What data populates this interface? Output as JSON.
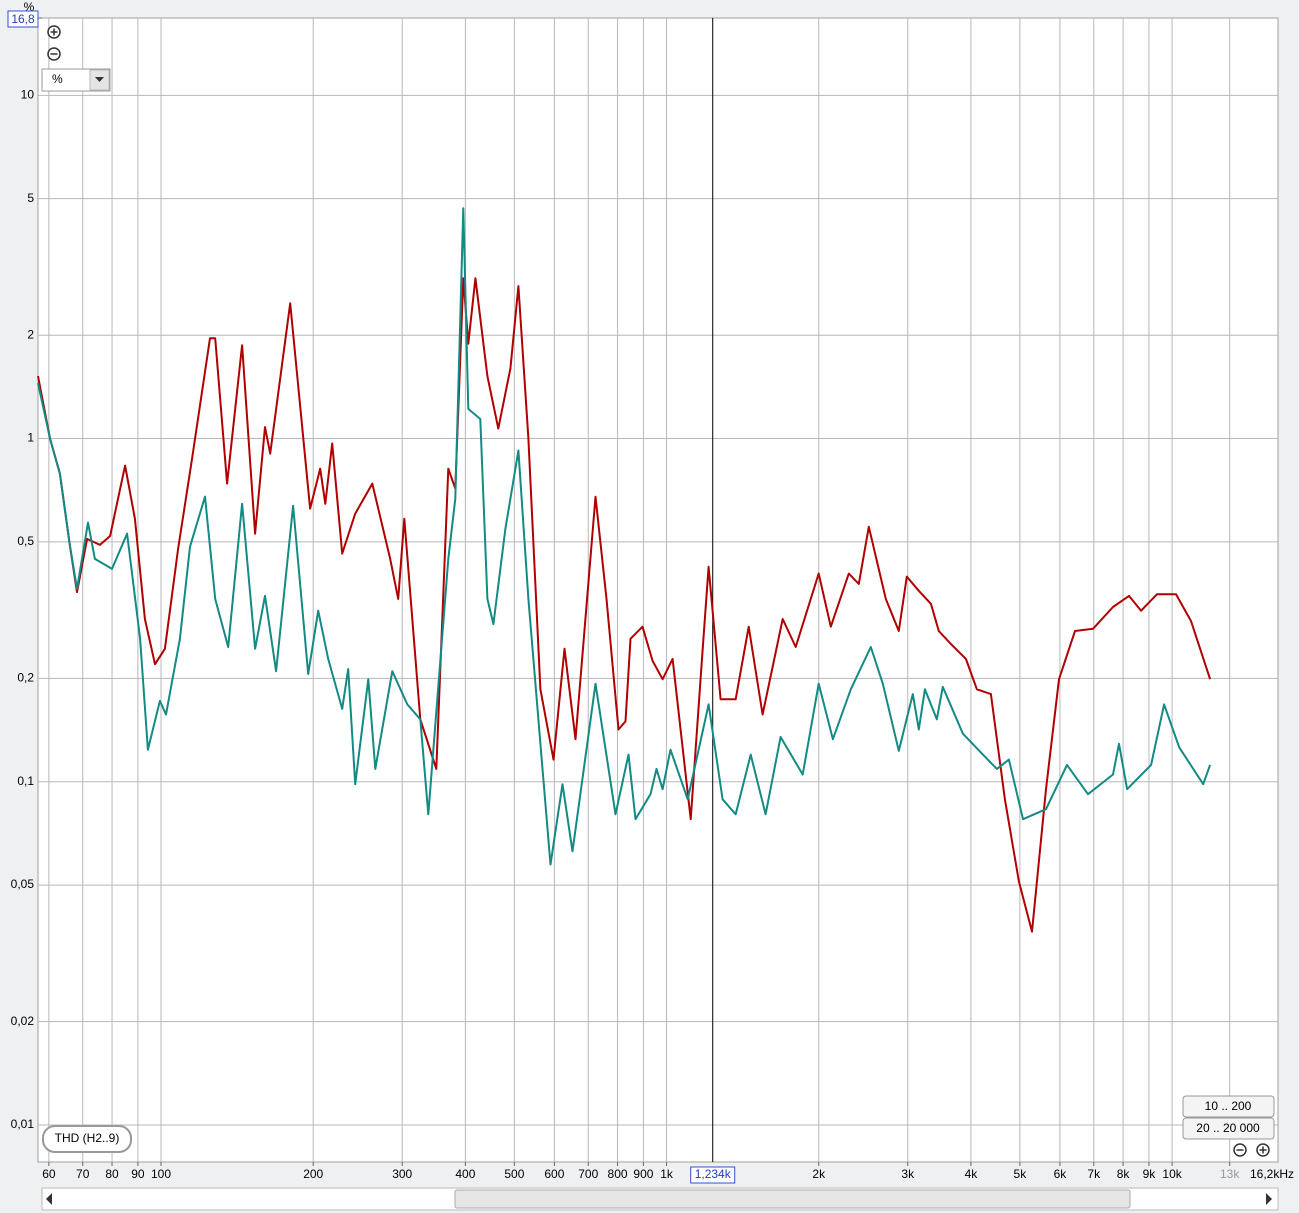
{
  "chart_data": {
    "type": "line",
    "y_unit": "%",
    "unit_selector": "%",
    "trace_label": "THD (H2..9)",
    "range_buttons": [
      "10 .. 200",
      "20 .. 20 000"
    ],
    "xscale": "log",
    "yscale": "log",
    "grid": true,
    "xlim": [
      57.1,
      16200
    ],
    "ylim": [
      0.0078,
      16.8
    ],
    "ytop": {
      "value": 16.8,
      "label": "16,8"
    },
    "cursor": {
      "value": 1234,
      "label": "1,234k"
    },
    "xticks": [
      60,
      70,
      80,
      90,
      100,
      200,
      300,
      400,
      500,
      600,
      700,
      800,
      900,
      {
        "value": 1000,
        "label": "1k"
      },
      {
        "value": 2000,
        "label": "2k"
      },
      {
        "value": 3000,
        "label": "3k"
      },
      {
        "value": 4000,
        "label": "4k"
      },
      {
        "value": 5000,
        "label": "5k"
      },
      {
        "value": 6000,
        "label": "6k"
      },
      {
        "value": 7000,
        "label": "7k"
      },
      {
        "value": 8000,
        "label": "8k"
      },
      {
        "value": 9000,
        "label": "9k"
      },
      {
        "value": 10000,
        "label": "10k"
      },
      {
        "value": 13000,
        "label": "13k"
      },
      {
        "value": 16200,
        "label": "16,2kHz"
      }
    ],
    "yticks": [
      {
        "value": 0.01,
        "label": "0,01"
      },
      {
        "value": 0.02,
        "label": "0,02"
      },
      {
        "value": 0.05,
        "label": "0,05"
      },
      {
        "value": 0.1,
        "label": "0,1"
      },
      {
        "value": 0.2,
        "label": "0,2"
      },
      {
        "value": 0.5,
        "label": "0,5"
      },
      1,
      2,
      5,
      10
    ],
    "series": [
      {
        "color": "#b00000",
        "x": [
          57.1,
          60.3,
          63.1,
          66.0,
          68.2,
          71.4,
          75.7,
          79.3,
          84.9,
          88.8,
          92.9,
          97.3,
          101.8,
          108.1,
          115.2,
          125,
          128,
          135.1,
          144.7,
          153.5,
          160.6,
          164.4,
          180.1,
          197.2,
          206.5,
          211.3,
          218.1,
          228.2,
          242.2,
          261.8,
          284.0,
          294.6,
          302.8,
          325.8,
          350.4,
          370.1,
          382.1,
          396.3,
          405.4,
          418.6,
          442.2,
          464.8,
          491.0,
          509.3,
          533.0,
          563.0,
          597.4,
          628.1,
          660.4,
          723.5,
          760.7,
          803.5,
          829.5,
          848.6,
          896.4,
          938.3,
          982,
          1028,
          1116,
          1179,
          1211,
          1279,
          1370,
          1454,
          1549,
          1697,
          1801,
          2000,
          2113,
          2293,
          2400,
          2512,
          2715,
          2880,
          2987,
          3155,
          3333,
          3456,
          3651,
          3910,
          4111,
          4382,
          4670,
          4977,
          5283,
          5630,
          5974,
          6427,
          6976,
          7642,
          8220,
          8683,
          9339,
          10180,
          10900,
          11890
        ],
        "values": [
          1.52,
          1.0,
          0.79,
          0.49,
          0.357,
          0.51,
          0.49,
          0.52,
          0.834,
          0.584,
          0.298,
          0.22,
          0.244,
          0.477,
          0.875,
          1.96,
          1.96,
          0.739,
          1.87,
          0.528,
          1.08,
          0.904,
          2.48,
          0.625,
          0.817,
          0.646,
          0.967,
          0.462,
          0.604,
          0.739,
          0.446,
          0.341,
          0.584,
          0.152,
          0.109,
          0.817,
          0.715,
          2.93,
          1.89,
          2.93,
          1.52,
          1.07,
          1.6,
          2.78,
          1.0,
          0.186,
          0.116,
          0.244,
          0.133,
          0.677,
          0.341,
          0.142,
          0.15,
          0.261,
          0.283,
          0.225,
          0.199,
          0.228,
          0.0778,
          0.244,
          0.423,
          0.174,
          0.174,
          0.283,
          0.157,
          0.298,
          0.247,
          0.404,
          0.283,
          0.404,
          0.377,
          0.553,
          0.341,
          0.275,
          0.396,
          0.36,
          0.33,
          0.275,
          0.252,
          0.228,
          0.186,
          0.18,
          0.0889,
          0.0512,
          0.0366,
          0.0951,
          0.199,
          0.275,
          0.279,
          0.323,
          0.348,
          0.315,
          0.352,
          0.352,
          0.294,
          0.199
        ]
      },
      {
        "color": "#138a84",
        "x": [
          57.1,
          60.3,
          63.1,
          66.0,
          68.2,
          71.7,
          74.0,
          80.0,
          85.7,
          90.9,
          94.2,
          99.5,
          102.3,
          109.0,
          114.1,
          122.2,
          128.0,
          135.8,
          144.7,
          153.5,
          160.6,
          168.9,
          182.5,
          195.5,
          204.6,
          214.1,
          228.2,
          234.6,
          242.2,
          257.0,
          265.4,
          286.7,
          307.0,
          325.8,
          337.9,
          370.1,
          382.1,
          396.3,
          405.4,
          428.2,
          442.2,
          454.5,
          480.0,
          509.3,
          533,
          568.3,
          589.4,
          622.5,
          651.5,
          723.5,
          792.5,
          840.8,
          868.0,
          929.6,
          955.4,
          982,
          1018,
          1101,
          1211,
          1291,
          1370,
          1467,
          1570,
          1681,
          1859,
          2000,
          2133,
          2314,
          2535,
          2678,
          2880,
          3070,
          3155,
          3243,
          3425,
          3519,
          3856,
          4225,
          4502,
          4755,
          5070,
          5630,
          6196,
          6818,
          7642,
          7852,
          8146,
          9087,
          9643,
          10330,
          11520,
          11890
        ],
        "values": [
          1.45,
          1.0,
          0.79,
          0.49,
          0.365,
          0.569,
          0.446,
          0.417,
          0.528,
          0.261,
          0.124,
          0.172,
          0.157,
          0.261,
          0.484,
          0.677,
          0.341,
          0.247,
          0.646,
          0.244,
          0.348,
          0.21,
          0.637,
          0.206,
          0.315,
          0.228,
          0.163,
          0.213,
          0.0984,
          0.199,
          0.109,
          0.21,
          0.168,
          0.152,
          0.0804,
          0.446,
          0.668,
          4.69,
          1.22,
          1.14,
          0.341,
          0.288,
          0.546,
          0.923,
          0.341,
          0.109,
          0.0574,
          0.0984,
          0.0627,
          0.193,
          0.0804,
          0.12,
          0.0778,
          0.092,
          0.109,
          0.0951,
          0.124,
          0.0889,
          0.168,
          0.0889,
          0.0804,
          0.12,
          0.0804,
          0.135,
          0.105,
          0.193,
          0.133,
          0.186,
          0.247,
          0.193,
          0.123,
          0.18,
          0.142,
          0.186,
          0.152,
          0.189,
          0.138,
          0.12,
          0.109,
          0.116,
          0.0778,
          0.0832,
          0.112,
          0.092,
          0.105,
          0.129,
          0.0951,
          0.112,
          0.168,
          0.126,
          0.0984,
          0.112
        ]
      }
    ]
  }
}
